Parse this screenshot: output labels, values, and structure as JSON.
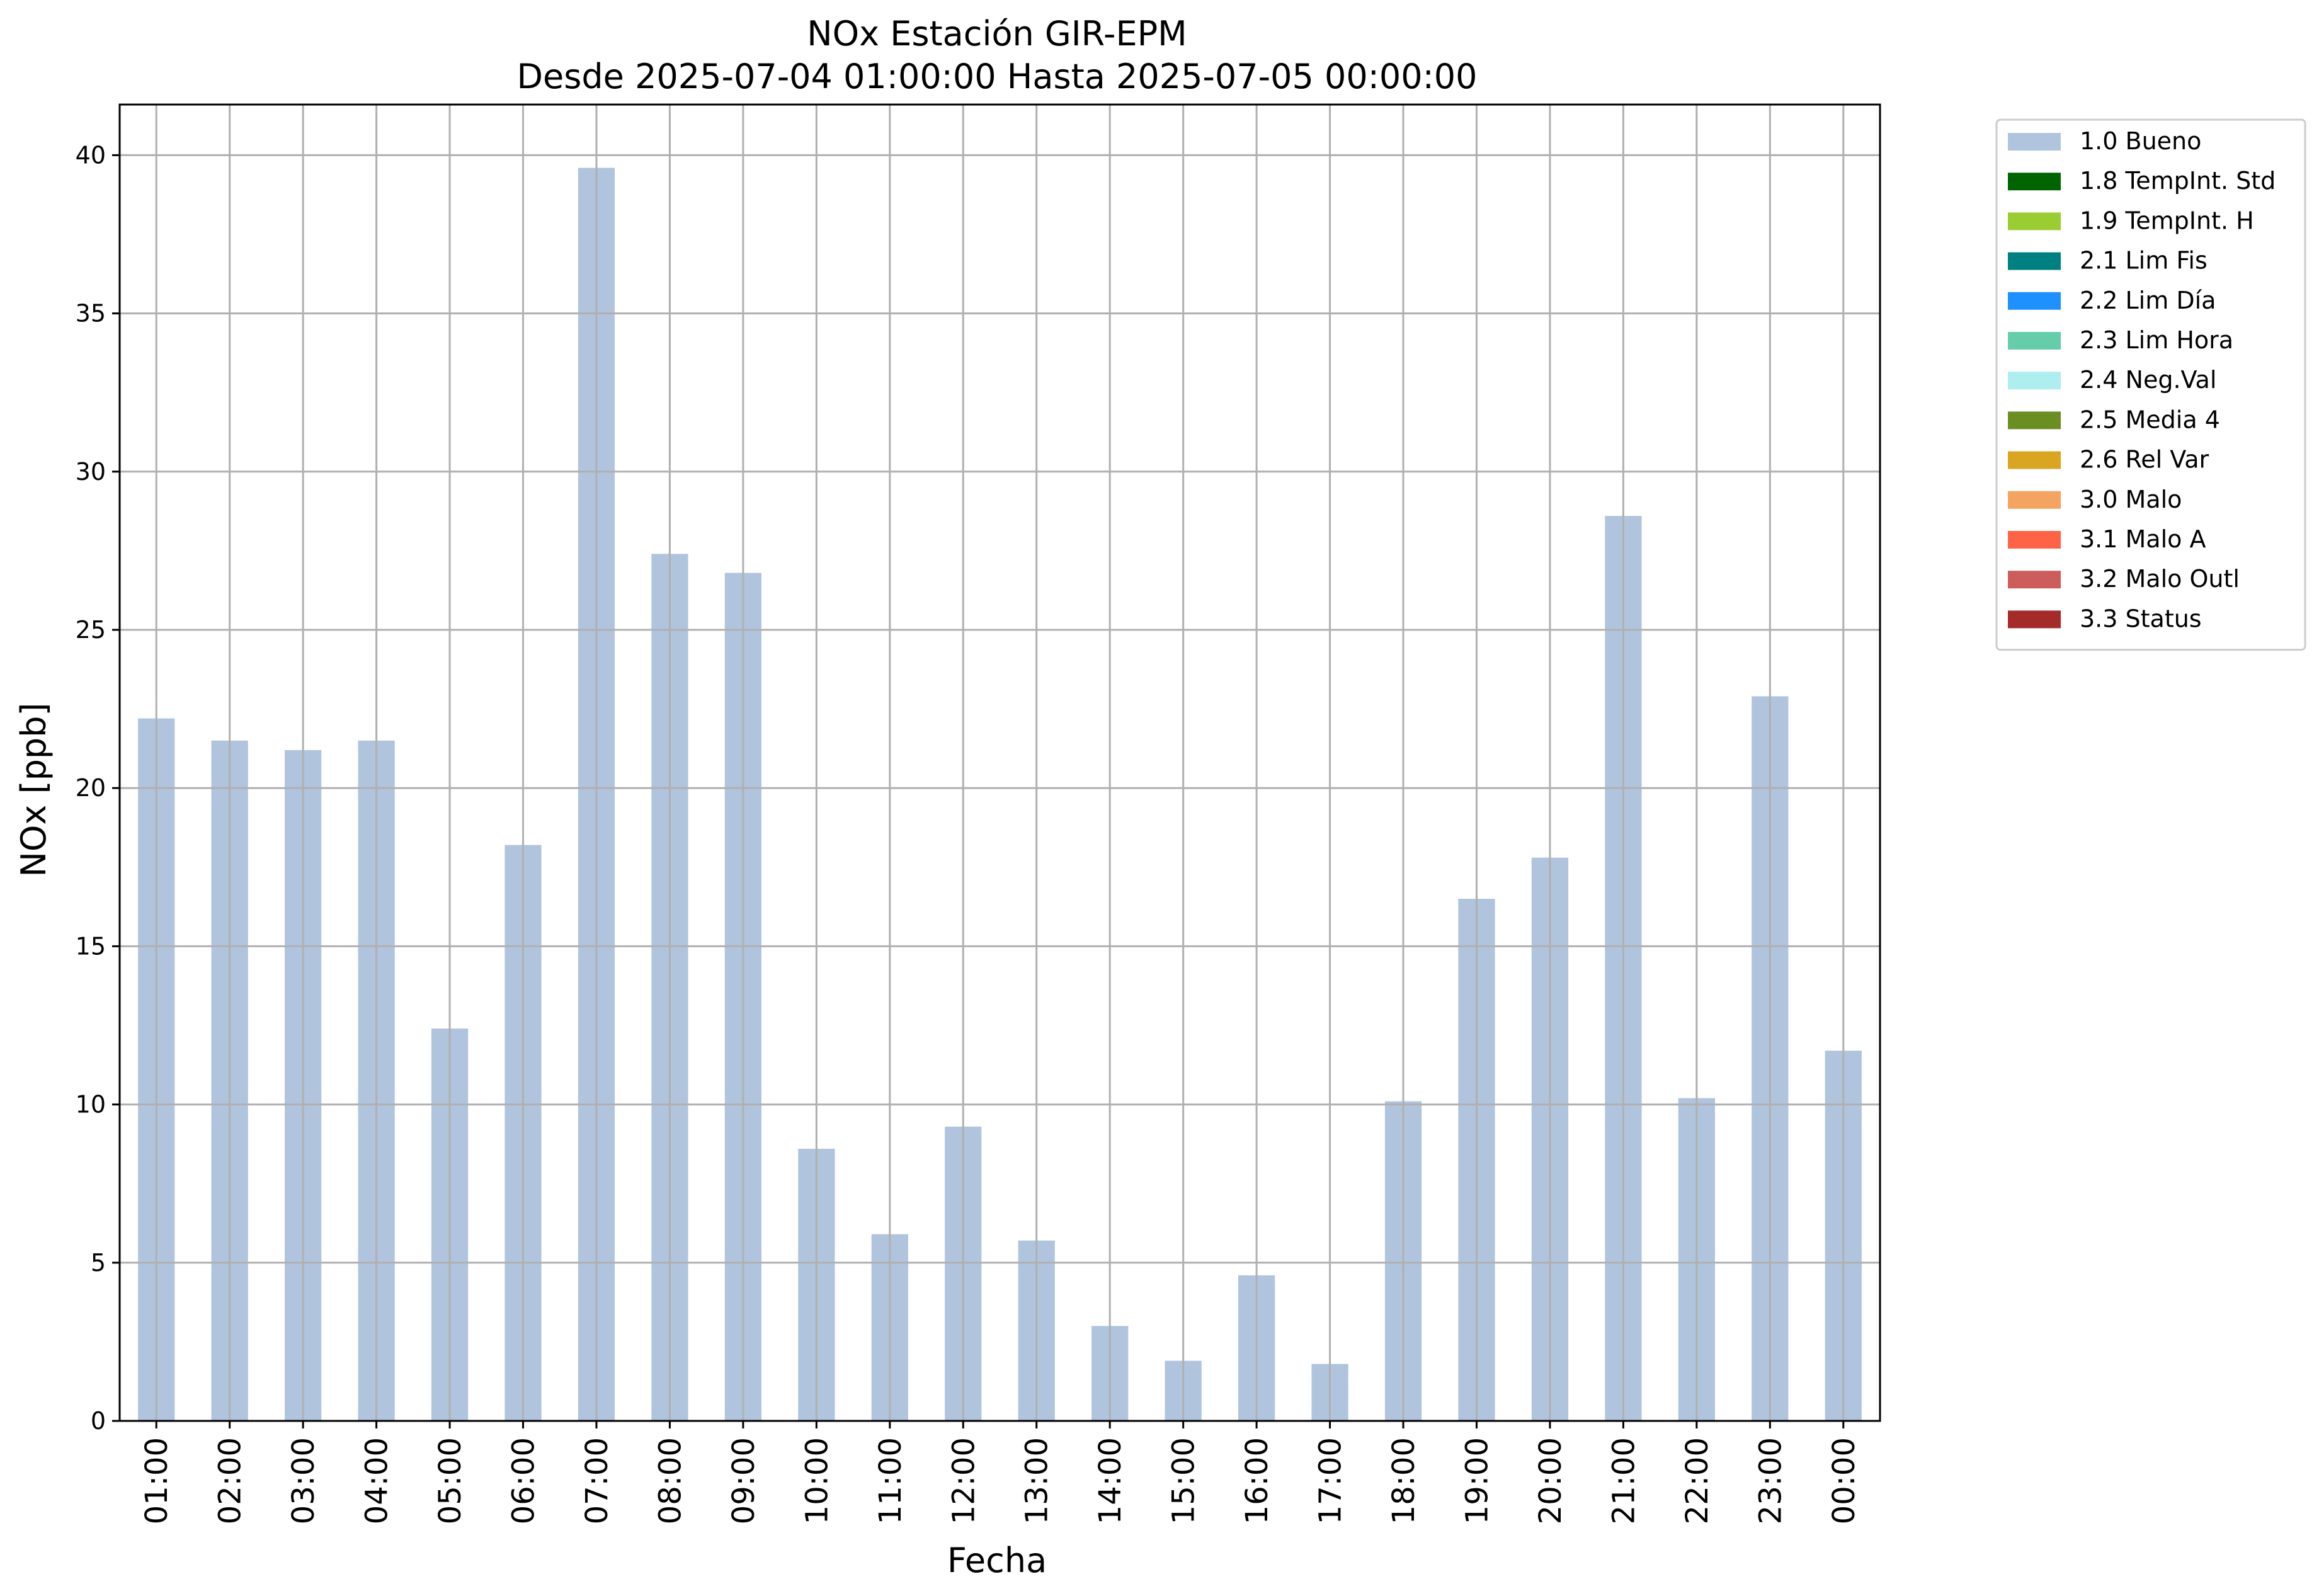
{
  "chart_data": {
    "type": "bar",
    "title": "NOx Estación GIR-EPM",
    "subtitle": "Desde 2025-07-04 01:00:00 Hasta 2025-07-05 00:00:00",
    "xlabel": "Fecha",
    "ylabel": "NOx [ppb]",
    "ylim": [
      0,
      41.6
    ],
    "yticks": [
      0,
      5,
      10,
      15,
      20,
      25,
      30,
      35,
      40
    ],
    "grid": true,
    "legend_position": "outside-top-right",
    "categories": [
      "01:00",
      "02:00",
      "03:00",
      "04:00",
      "05:00",
      "06:00",
      "07:00",
      "08:00",
      "09:00",
      "10:00",
      "11:00",
      "12:00",
      "13:00",
      "14:00",
      "15:00",
      "16:00",
      "17:00",
      "18:00",
      "19:00",
      "20:00",
      "21:00",
      "22:00",
      "23:00",
      "00:00"
    ],
    "series": [
      {
        "name": "1.0 Bueno",
        "color": "#b0c4de",
        "values": [
          22.2,
          21.5,
          21.2,
          21.5,
          12.4,
          18.2,
          39.6,
          27.4,
          26.8,
          8.6,
          5.9,
          9.3,
          5.7,
          3.0,
          1.9,
          4.6,
          1.8,
          10.1,
          16.5,
          17.8,
          28.6,
          10.2,
          22.9,
          11.7
        ]
      }
    ],
    "legend": [
      {
        "label": "1.0 Bueno",
        "color": "#b0c4de"
      },
      {
        "label": "1.8 TempInt. Std",
        "color": "#006400"
      },
      {
        "label": "1.9 TempInt. H",
        "color": "#9acd32"
      },
      {
        "label": "2.1 Lim Fis",
        "color": "#008080"
      },
      {
        "label": "2.2 Lim Día",
        "color": "#1e90ff"
      },
      {
        "label": "2.3 Lim Hora",
        "color": "#66cdaa"
      },
      {
        "label": "2.4 Neg.Val",
        "color": "#afeeee"
      },
      {
        "label": "2.5 Media 4",
        "color": "#6b8e23"
      },
      {
        "label": "2.6 Rel Var",
        "color": "#daa520"
      },
      {
        "label": "3.0 Malo",
        "color": "#f4a460"
      },
      {
        "label": "3.1 Malo A",
        "color": "#ff6347"
      },
      {
        "label": "3.2 Malo Outl",
        "color": "#cd5c5c"
      },
      {
        "label": "3.3 Status",
        "color": "#a52a2a"
      }
    ]
  }
}
